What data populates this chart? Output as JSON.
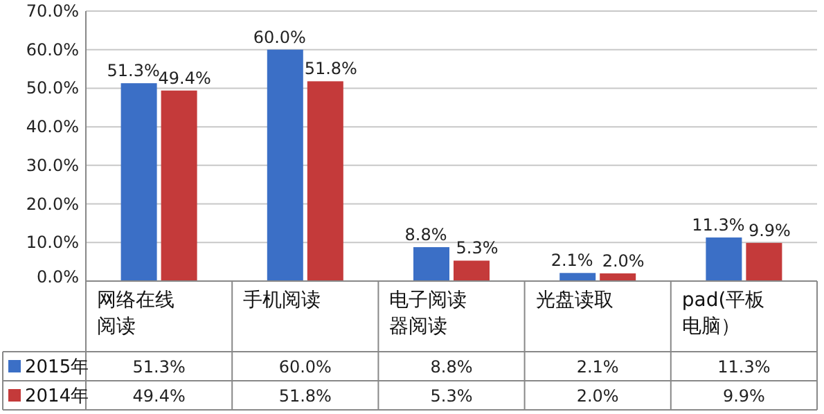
{
  "chart_data": {
    "type": "bar",
    "categories": [
      "网络在线阅读",
      "手机阅读",
      "电子阅读器阅读",
      "光盘读取",
      "pad(平板电脑）"
    ],
    "series": [
      {
        "name": "2015年",
        "color": "#3b6fc6",
        "values": [
          51.3,
          60.0,
          8.8,
          2.1,
          11.3
        ],
        "value_labels": [
          "51.3%",
          "60.0%",
          "8.8%",
          "2.1%",
          "11.3%"
        ]
      },
      {
        "name": "2014年",
        "color": "#c43a3a",
        "values": [
          49.4,
          51.8,
          5.3,
          2.0,
          9.9
        ],
        "value_labels": [
          "49.4%",
          "51.8%",
          "5.3%",
          "2.0%",
          "9.9%"
        ]
      }
    ],
    "ylim": [
      0,
      70
    ],
    "yticks": [
      {
        "value": 0,
        "label": "0.0%"
      },
      {
        "value": 10,
        "label": "10.0%"
      },
      {
        "value": 20,
        "label": "20.0%"
      },
      {
        "value": 30,
        "label": "30.0%"
      },
      {
        "value": 40,
        "label": "40.0%"
      },
      {
        "value": 50,
        "label": "50.0%"
      },
      {
        "value": 60,
        "label": "60.0%"
      },
      {
        "value": 70,
        "label": "70.0%"
      }
    ],
    "grid": "y",
    "legend": "bottom left"
  }
}
